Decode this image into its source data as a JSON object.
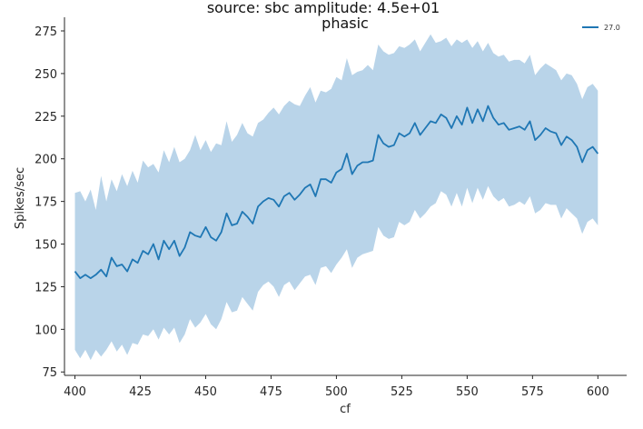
{
  "chart_data": {
    "type": "line",
    "title": "source: sbc amplitude: 4.5e+01",
    "subtitle": "phasic",
    "xlabel": "cf",
    "ylabel": "Spikes/sec",
    "xlim": [
      396,
      611
    ],
    "ylim": [
      73,
      283
    ],
    "xticks": [
      400,
      425,
      450,
      475,
      500,
      525,
      550,
      575,
      600
    ],
    "yticks": [
      75,
      100,
      125,
      150,
      175,
      200,
      225,
      250,
      275
    ],
    "grid": false,
    "legend": {
      "position": "top-right"
    },
    "colors": {
      "line": "#1f77b4",
      "band": "#b9d4e9"
    },
    "series": [
      {
        "name": "27.0",
        "x": [
          400,
          402,
          404,
          406,
          408,
          410,
          412,
          414,
          416,
          418,
          420,
          422,
          424,
          426,
          428,
          430,
          432,
          434,
          436,
          438,
          440,
          442,
          444,
          446,
          448,
          450,
          452,
          454,
          456,
          458,
          460,
          462,
          464,
          466,
          468,
          470,
          472,
          474,
          476,
          478,
          480,
          482,
          484,
          486,
          488,
          490,
          492,
          494,
          496,
          498,
          500,
          502,
          504,
          506,
          508,
          510,
          512,
          514,
          516,
          518,
          520,
          522,
          524,
          526,
          528,
          530,
          532,
          534,
          536,
          538,
          540,
          542,
          544,
          546,
          548,
          550,
          552,
          554,
          556,
          558,
          560,
          562,
          564,
          566,
          568,
          570,
          572,
          574,
          576,
          578,
          580,
          582,
          584,
          586,
          588,
          590,
          592,
          594,
          596,
          598,
          600
        ],
        "y": [
          134,
          130,
          132,
          130,
          132,
          135,
          131,
          142,
          137,
          138,
          134,
          141,
          139,
          146,
          144,
          150,
          141,
          152,
          147,
          152,
          143,
          148,
          157,
          155,
          154,
          160,
          154,
          152,
          157,
          168,
          161,
          162,
          169,
          166,
          162,
          172,
          175,
          177,
          176,
          172,
          178,
          180,
          176,
          179,
          183,
          185,
          178,
          188,
          188,
          186,
          192,
          194,
          203,
          191,
          196,
          198,
          198,
          199,
          214,
          209,
          207,
          208,
          215,
          213,
          215,
          221,
          214,
          218,
          222,
          221,
          226,
          224,
          218,
          225,
          220,
          230,
          221,
          229,
          222,
          231,
          224,
          220,
          221,
          217,
          218,
          219,
          217,
          222,
          211,
          214,
          218,
          216,
          215,
          208,
          213,
          211,
          207,
          198,
          205,
          207,
          203
        ],
        "upper": [
          180,
          181,
          175,
          182,
          170,
          190,
          175,
          188,
          181,
          191,
          184,
          193,
          186,
          199,
          195,
          197,
          192,
          205,
          198,
          207,
          198,
          200,
          205,
          214,
          205,
          211,
          204,
          209,
          208,
          222,
          210,
          214,
          221,
          215,
          213,
          221,
          223,
          227,
          230,
          226,
          231,
          234,
          232,
          231,
          237,
          242,
          233,
          240,
          239,
          241,
          248,
          246,
          259,
          249,
          251,
          252,
          255,
          252,
          267,
          263,
          261,
          262,
          266,
          265,
          267,
          270,
          263,
          268,
          273,
          268,
          269,
          271,
          266,
          270,
          268,
          270,
          265,
          269,
          263,
          268,
          262,
          260,
          261,
          257,
          258,
          258,
          256,
          261,
          249,
          253,
          256,
          254,
          252,
          246,
          250,
          249,
          244,
          235,
          242,
          244,
          240
        ],
        "lower": [
          88,
          83,
          88,
          82,
          88,
          84,
          88,
          93,
          87,
          91,
          85,
          92,
          91,
          97,
          96,
          100,
          94,
          101,
          97,
          101,
          92,
          97,
          106,
          101,
          104,
          109,
          103,
          100,
          106,
          116,
          110,
          111,
          119,
          115,
          111,
          122,
          126,
          128,
          125,
          119,
          126,
          128,
          123,
          127,
          131,
          132,
          126,
          136,
          137,
          133,
          138,
          142,
          147,
          136,
          142,
          144,
          145,
          146,
          160,
          155,
          153,
          154,
          163,
          161,
          163,
          170,
          165,
          168,
          172,
          174,
          181,
          179,
          172,
          180,
          172,
          183,
          174,
          183,
          176,
          184,
          178,
          175,
          177,
          172,
          173,
          175,
          173,
          178,
          168,
          170,
          174,
          173,
          173,
          165,
          171,
          168,
          165,
          156,
          163,
          165,
          161
        ]
      }
    ]
  }
}
